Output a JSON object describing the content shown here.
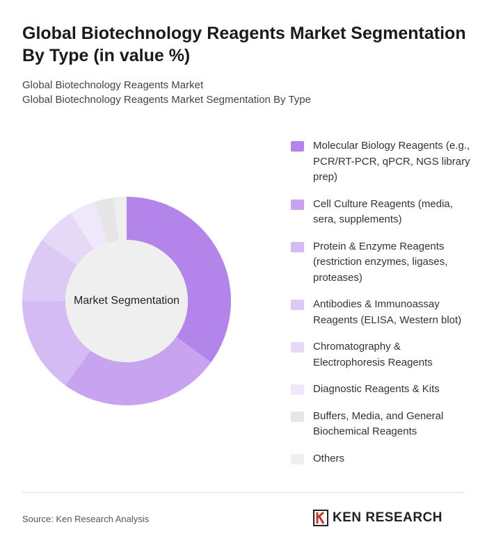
{
  "chart_data": {
    "type": "pie",
    "title": "Global Biotechnology Reagents Market Segmentation By Type (in value %)",
    "subtitles": [
      "Global Biotechnology Reagents Market",
      "Global Biotechnology Reagents Market Segmentation By Type"
    ],
    "center_label": "Market Segmentation",
    "categories": [
      "Molecular Biology Reagents (e.g., PCR/RT-PCR, qPCR, NGS library prep)",
      "Cell Culture Reagents (media, sera, supplements)",
      "Protein & Enzyme Reagents (restriction enzymes, ligases, proteases)",
      "Antibodies & Immunoassay Reagents (ELISA, Western blot)",
      "Chromatography & Electrophoresis Reagents",
      "Diagnostic Reagents & Kits",
      "Buffers, Media, and General Biochemical Reagents",
      "Others"
    ],
    "values": [
      35,
      25,
      15,
      10,
      6,
      4,
      3,
      2
    ],
    "colors": [
      "#b384ea",
      "#c7a3f0",
      "#d4bbf4",
      "#dccaf5",
      "#e6d9f8",
      "#efe7fa",
      "#e6e6e6",
      "#efefef"
    ]
  },
  "source": "Source: Ken Research Analysis",
  "brand": "KEN RESEARCH"
}
